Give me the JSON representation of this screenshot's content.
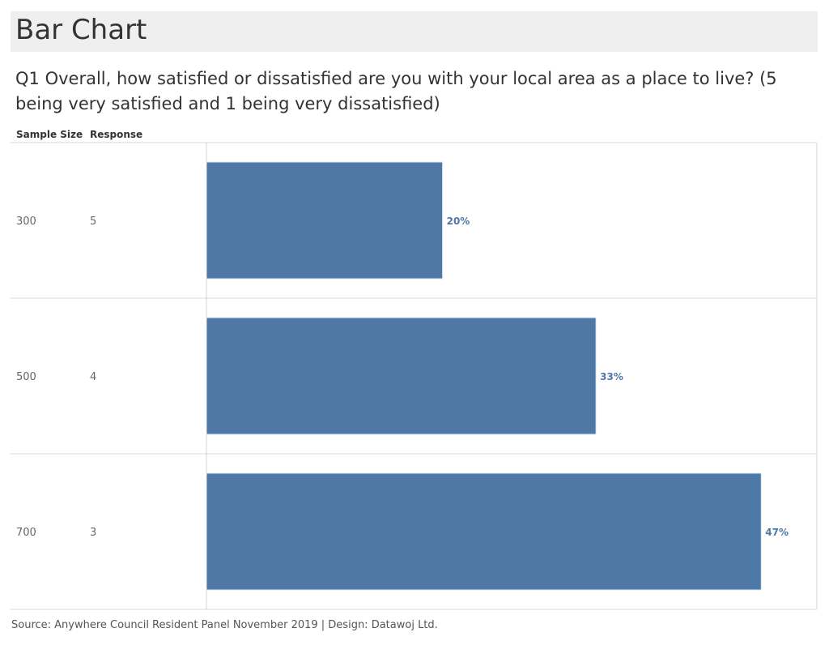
{
  "title": "Bar Chart",
  "subtitle": "Q1 Overall, how satisfied or dissatisfied are you with your local area as a place to live? (5 being very satisfied and 1 being very dissatisfied)",
  "columns": {
    "sample_size": "Sample Size",
    "response": "Response"
  },
  "footer": "Source: Anywhere Council Resident Panel November 2019 | Design: Datawoj Ltd.",
  "colors": {
    "bar": "#4e79a7",
    "label": "#4e79a7",
    "grid": "#d4d4d4"
  },
  "chart_data": {
    "type": "bar",
    "orientation": "horizontal",
    "title": "Bar Chart",
    "rows": [
      {
        "sample_size": "300",
        "response": "5",
        "value": 20,
        "label": "20%"
      },
      {
        "sample_size": "500",
        "response": "4",
        "value": 33,
        "label": "33%"
      },
      {
        "sample_size": "700",
        "response": "3",
        "value": 47,
        "label": "47%"
      }
    ],
    "xlim": [
      0,
      50
    ],
    "grid": false,
    "legend": "none"
  }
}
